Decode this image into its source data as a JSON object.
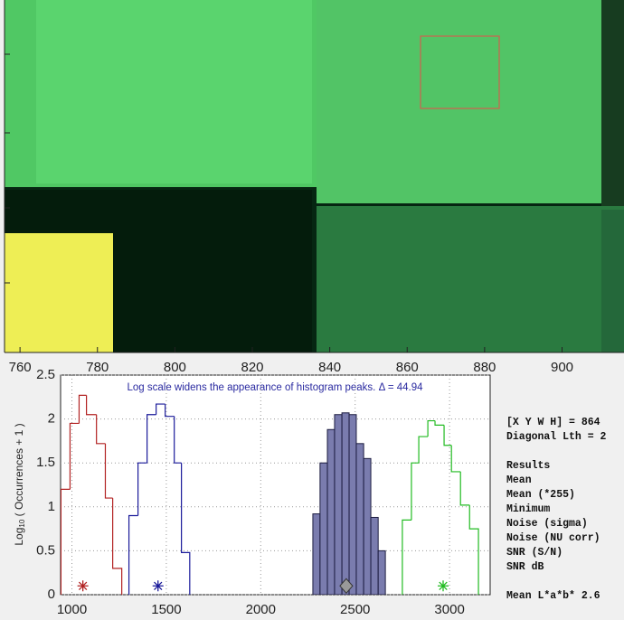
{
  "image_axis": {
    "xlim": [
      756,
      916
    ],
    "xticks": [
      760,
      780,
      800,
      820,
      840,
      860,
      880,
      900
    ]
  },
  "chart_data": {
    "type": "histogram",
    "annotation": "Log scale widens the appearance of histogram peaks.  Δ = 44.94",
    "ylabel_main": "Log",
    "ylabel_sub": "10",
    "ylabel_rest": "( Occurrences + 1 )",
    "xlim": [
      940,
      3215
    ],
    "ylim": [
      0,
      2.5
    ],
    "xticks": [
      1000,
      1500,
      2000,
      2500,
      3000
    ],
    "yticks": [
      0,
      0.5,
      1,
      1.5,
      2,
      2.5
    ],
    "grid": true,
    "series": [
      {
        "color": "#b22222",
        "fill": false,
        "bins": [
          942,
          990,
          1038,
          1077,
          1130,
          1177,
          1216,
          1264
        ],
        "values": [
          1.2,
          1.95,
          2.27,
          2.05,
          1.72,
          1.1,
          0.3
        ],
        "mean": 1058,
        "marker": "star"
      },
      {
        "color": "#1a1a9a",
        "fill": false,
        "bins": [
          1302,
          1350,
          1398,
          1446,
          1494,
          1542,
          1580,
          1624
        ],
        "values": [
          0.9,
          1.5,
          2.05,
          2.17,
          2.03,
          1.5,
          0.48
        ],
        "mean": 1456,
        "marker": "star"
      },
      {
        "color": "#7a7cae",
        "fill": true,
        "bins": [
          2276,
          2314,
          2353,
          2391,
          2430,
          2468,
          2506,
          2545,
          2583,
          2622,
          2660
        ],
        "values": [
          0.92,
          1.5,
          1.88,
          2.05,
          2.07,
          2.05,
          1.72,
          1.55,
          0.88,
          0.5
        ],
        "mean": 2453,
        "marker": "diamond"
      },
      {
        "color": "#22bb22",
        "fill": false,
        "bins": [
          2750,
          2798,
          2837,
          2885,
          2923,
          2971,
          3010,
          3058,
          3106,
          3153
        ],
        "values": [
          0.85,
          1.5,
          1.8,
          1.98,
          1.93,
          1.7,
          1.4,
          1.02,
          0.75
        ],
        "mean": 2966,
        "marker": "star"
      }
    ],
    "marker_y": 0.1
  },
  "results": {
    "xywh": "[X Y W H] = 864 ",
    "diagonal": "Diagonal Lth = 2",
    "heading": "Results",
    "rows": [
      "Mean",
      "Mean (*255)",
      "Minimum",
      "Noise (sigma)",
      "Noise (NU corr)",
      "SNR (S/N)",
      "SNR dB"
    ],
    "lab": "Mean L*a*b* 2.6"
  }
}
